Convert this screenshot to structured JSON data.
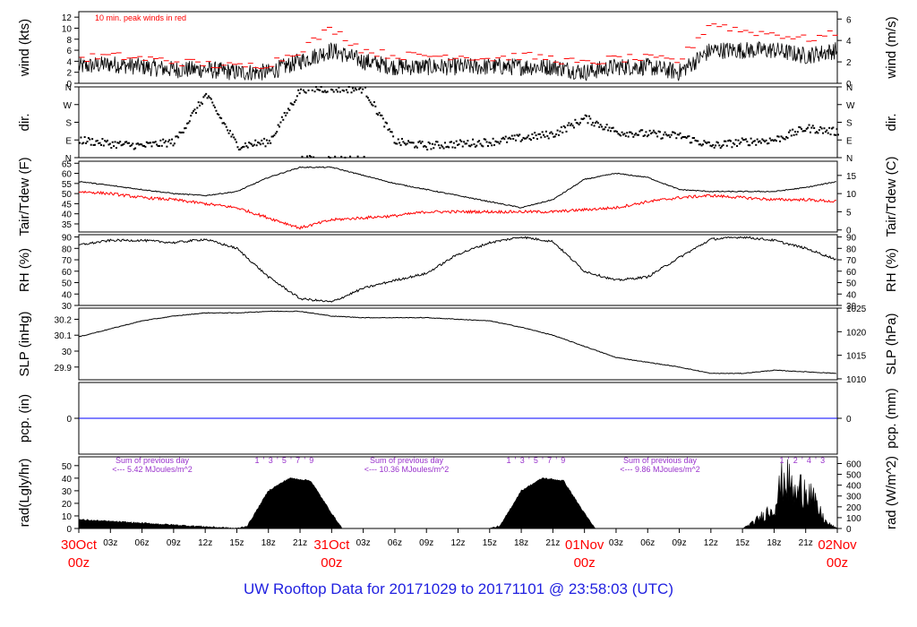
{
  "footer": "UW Rooftop Data for 20171029  to  20171101 @ 23:58:03  (UTC)",
  "colors": {
    "peak": "#ff0000",
    "dew": "#ff0000",
    "precip": "#0000ff",
    "dates": "#ff0000",
    "annot": "#9932cc",
    "footer": "#1f1fe0"
  },
  "chart_data": [
    {
      "type": "line",
      "panel": "wind",
      "ylabel": "wind (kts)",
      "ylabel_right": "wind (m/s)",
      "ylim": [
        0,
        13
      ],
      "yticks": [
        0,
        2,
        4,
        6,
        8,
        10,
        12
      ],
      "ylim_right": [
        0,
        6.69
      ],
      "yticks_right": [
        0,
        2,
        4,
        6
      ],
      "annotation": "10 min. peak winds in red",
      "x_hours": [
        0,
        3,
        6,
        9,
        12,
        15,
        18,
        21,
        24,
        27,
        30,
        33,
        36,
        39,
        42,
        45,
        48,
        51,
        54,
        57,
        60,
        63,
        66,
        69,
        72
      ],
      "series": [
        {
          "name": "wind",
          "values": [
            3,
            3.5,
            3,
            2.5,
            2.5,
            2,
            2,
            4,
            6,
            4,
            3,
            3,
            3,
            3,
            3,
            3,
            2,
            3,
            3,
            2,
            6,
            6,
            6,
            5,
            6
          ]
        },
        {
          "name": "10 min. peak winds",
          "values": [
            4.5,
            5,
            4.5,
            4,
            3.5,
            3,
            3.5,
            6,
            10,
            6,
            5,
            5,
            5,
            4.5,
            5,
            4.5,
            3.5,
            4.5,
            4.5,
            4,
            11,
            9.5,
            9,
            8,
            9
          ]
        }
      ]
    },
    {
      "type": "scatter",
      "panel": "dir",
      "ylabel": "dir.",
      "ylabel_right": "dir.",
      "yticks": [
        "N",
        "E",
        "S",
        "W",
        "N"
      ],
      "ytick_degrees": [
        0,
        90,
        180,
        270,
        360
      ],
      "ylim": [
        0,
        360
      ],
      "x_hours": [
        0,
        3,
        6,
        9,
        12,
        15,
        18,
        21,
        24,
        27,
        30,
        33,
        36,
        39,
        42,
        45,
        48,
        51,
        54,
        57,
        60,
        63,
        66,
        69,
        72
      ],
      "values": [
        90,
        70,
        60,
        80,
        320,
        60,
        80,
        350,
        350,
        350,
        80,
        60,
        70,
        80,
        100,
        120,
        200,
        130,
        120,
        110,
        60,
        80,
        90,
        150,
        130
      ]
    },
    {
      "type": "line",
      "panel": "temperature",
      "ylabel": "Tair/Tdew (F)",
      "ylabel_right": "Tair/Tdew (C)",
      "ylim": [
        31,
        66
      ],
      "yticks": [
        35,
        40,
        45,
        50,
        55,
        60,
        65
      ],
      "ylim_right": [
        -0.56,
        18.9
      ],
      "yticks_right": [
        0,
        5,
        10,
        15
      ],
      "x_hours": [
        0,
        3,
        6,
        9,
        12,
        15,
        18,
        21,
        24,
        27,
        30,
        33,
        36,
        39,
        42,
        45,
        48,
        51,
        54,
        57,
        60,
        63,
        66,
        69,
        72
      ],
      "series": [
        {
          "name": "Tair",
          "values": [
            56,
            54,
            52,
            50,
            49,
            51,
            58,
            63,
            63,
            59,
            55,
            52,
            49,
            46,
            43,
            47,
            57,
            60,
            58,
            52,
            51,
            51,
            51,
            53,
            56
          ]
        },
        {
          "name": "Tdew",
          "values": [
            51,
            50,
            48,
            47,
            45,
            43,
            38,
            33,
            37,
            38,
            39,
            41,
            41,
            41,
            41,
            41,
            42,
            43,
            46,
            48,
            49,
            48,
            47,
            47,
            46
          ]
        }
      ]
    },
    {
      "type": "line",
      "panel": "rh",
      "ylabel": "RH (%)",
      "ylabel_right": "RH (%)",
      "ylim": [
        30,
        92
      ],
      "yticks": [
        30,
        40,
        50,
        60,
        70,
        80,
        90
      ],
      "yticks_right": [
        30,
        40,
        50,
        60,
        70,
        80,
        90
      ],
      "x_hours": [
        0,
        3,
        6,
        9,
        12,
        15,
        18,
        21,
        24,
        27,
        30,
        33,
        36,
        39,
        42,
        45,
        48,
        51,
        54,
        57,
        60,
        63,
        66,
        69,
        72
      ],
      "values": [
        83,
        87,
        87,
        85,
        88,
        80,
        55,
        36,
        33,
        45,
        52,
        58,
        75,
        85,
        90,
        86,
        60,
        52,
        55,
        72,
        88,
        90,
        87,
        80,
        70
      ]
    },
    {
      "type": "line",
      "panel": "slp",
      "ylabel": "SLP (inHg)",
      "ylabel_right": "SLP (hPa)",
      "ylim": [
        29.82,
        30.27
      ],
      "yticks": [
        29.9,
        30.0,
        30.1,
        30.2
      ],
      "ylim_right": [
        1009.8,
        1025.0
      ],
      "yticks_right": [
        1010,
        1015,
        1020,
        1025
      ],
      "x_hours": [
        0,
        3,
        6,
        9,
        12,
        15,
        18,
        21,
        24,
        27,
        30,
        33,
        36,
        39,
        42,
        45,
        48,
        51,
        54,
        57,
        60,
        63,
        66,
        69,
        72
      ],
      "values": [
        30.09,
        30.14,
        30.19,
        30.22,
        30.24,
        30.24,
        30.25,
        30.25,
        30.22,
        30.21,
        30.21,
        30.21,
        30.2,
        30.19,
        30.15,
        30.1,
        30.03,
        29.96,
        29.93,
        29.9,
        29.86,
        29.86,
        29.88,
        29.87,
        29.86
      ]
    },
    {
      "type": "line",
      "panel": "precip",
      "ylabel": "pcp. (in)",
      "ylabel_right": "pcp. (mm)",
      "ylim": [
        -1,
        1
      ],
      "yticks": [
        0
      ],
      "yticks_right": [
        0
      ],
      "x_hours": [
        0,
        72
      ],
      "values": [
        0,
        0
      ]
    },
    {
      "type": "area",
      "panel": "radiation",
      "ylabel": "rad(Lgly/hr)",
      "ylabel_right": "rad (W/m^2)",
      "ylim": [
        0,
        57
      ],
      "yticks": [
        0,
        10,
        20,
        30,
        40,
        50
      ],
      "ylim_right": [
        0,
        662
      ],
      "yticks_right": [
        0,
        100,
        200,
        300,
        400,
        500,
        600
      ],
      "x_hours": [
        0,
        15,
        16,
        18,
        20,
        22,
        24,
        25,
        39,
        40,
        42,
        44,
        46,
        48,
        49,
        63,
        64,
        66,
        67,
        68,
        69,
        70,
        71,
        72
      ],
      "values": [
        7,
        0,
        2,
        30,
        40,
        38,
        12,
        0,
        0,
        2,
        30,
        40,
        38,
        12,
        0,
        0,
        5,
        20,
        50,
        30,
        42,
        20,
        5,
        0
      ],
      "annotations": [
        {
          "line1": "Sum of previous day",
          "line2": "<--- 5.42 MJoules/m^2"
        },
        {
          "line1": "Sum of previous day",
          "line2": "<--- 10.36 MJoules/m^2"
        },
        {
          "line1": "Sum of previous day",
          "line2": "<--- 9.86 MJoules/m^2"
        }
      ],
      "hour_marks": [
        [
          "1",
          "'",
          "3",
          "'",
          "5",
          "'",
          "7",
          "'",
          "9"
        ],
        [
          "1",
          "'",
          "3",
          "'",
          "5",
          "'",
          "7",
          "'",
          "9"
        ],
        [
          "1",
          "'",
          "2",
          "'",
          "4",
          "'",
          "3"
        ]
      ]
    }
  ],
  "x_axis": {
    "tick_labels": [
      "03z",
      "06z",
      "09z",
      "12z",
      "15z",
      "18z",
      "21z",
      "03z",
      "06z",
      "09z",
      "12z",
      "15z",
      "18z",
      "21z",
      "03z",
      "06z",
      "09z",
      "12z",
      "15z",
      "18z",
      "21z"
    ],
    "tick_hours": [
      3,
      6,
      9,
      12,
      15,
      18,
      21,
      27,
      30,
      33,
      36,
      39,
      42,
      45,
      51,
      54,
      57,
      60,
      63,
      66,
      69
    ],
    "date_labels": [
      {
        "hour": 0,
        "date": "30Oct",
        "time": "00z"
      },
      {
        "hour": 24,
        "date": "31Oct",
        "time": "00z"
      },
      {
        "hour": 48,
        "date": "01Nov",
        "time": "00z"
      },
      {
        "hour": 72,
        "date": "02Nov",
        "time": "00z"
      }
    ]
  }
}
